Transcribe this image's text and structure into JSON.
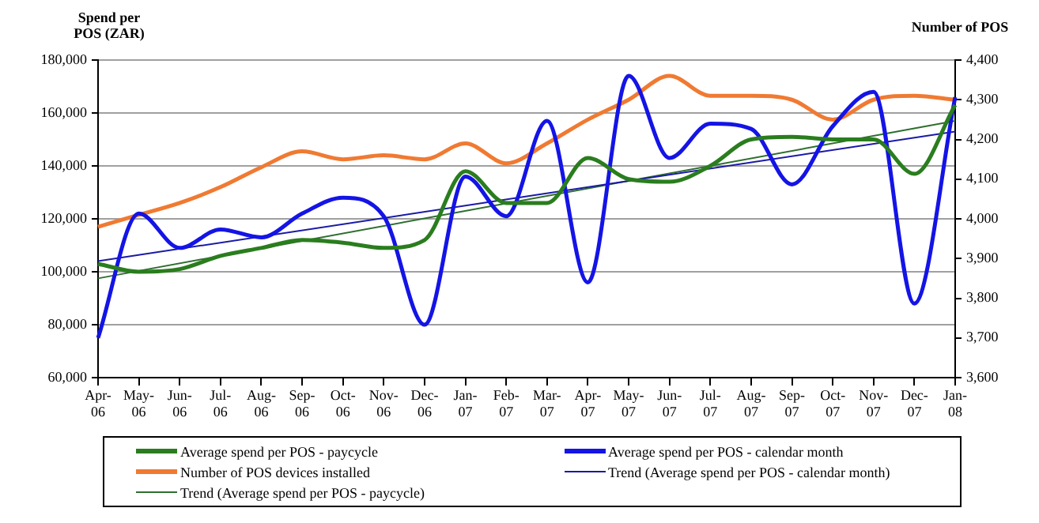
{
  "chart_data": {
    "type": "line",
    "ylabel": "Spend per POS (ZAR)",
    "y2label": "Number of POS",
    "categories": [
      "Apr-06",
      "May-06",
      "Jun-06",
      "Jul-06",
      "Aug-06",
      "Sep-06",
      "Oct-06",
      "Nov-06",
      "Dec-06",
      "Jan-07",
      "Feb-07",
      "Mar-07",
      "Apr-07",
      "May-07",
      "Jun-07",
      "Jul-07",
      "Aug-07",
      "Sep-07",
      "Oct-07",
      "Nov-07",
      "Dec-07",
      "Jan-08"
    ],
    "series": [
      {
        "name": "Average spend per POS - paycycle",
        "color": "#2a7d1e",
        "values": [
          103000,
          100000,
          101000,
          106000,
          109000,
          112000,
          111000,
          109000,
          112000,
          138000,
          126000,
          126000,
          143000,
          135000,
          134000,
          140000,
          150000,
          151000,
          150000,
          150000,
          137000,
          163000
        ]
      },
      {
        "name": "Average spend per POS - calendar month",
        "color": "#1414e6",
        "values": [
          75000,
          122000,
          109000,
          116000,
          113000,
          122000,
          128000,
          121000,
          80000,
          136000,
          121000,
          157000,
          96000,
          174000,
          143000,
          156000,
          154000,
          133000,
          155000,
          168000,
          88000,
          166000
        ]
      },
      {
        "name": "Number of POS devices installed",
        "color": "#f07a32",
        "axis": "y2",
        "values": [
          3980,
          4010,
          4040,
          4080,
          4130,
          4170,
          4150,
          4160,
          4150,
          4190,
          4140,
          4190,
          4250,
          4300,
          4360,
          4310,
          4310,
          4300,
          4250,
          4300,
          4310,
          4300
        ]
      },
      {
        "name": "Trend (Average spend per POS - calendar month)",
        "color": "#1a1aa6",
        "type": "line",
        "x": [
          "Apr-06",
          "Jan-08"
        ],
        "values": [
          104000,
          153000
        ]
      },
      {
        "name": "Trend (Average spend per POS - paycycle)",
        "color": "#2e6e2e",
        "type": "line",
        "x": [
          "Apr-06",
          "Jan-08"
        ],
        "values": [
          97500,
          157000
        ]
      }
    ],
    "ylim": [
      60000,
      180000
    ],
    "yticks": [
      {
        "value": 60000,
        "label": "60,000"
      },
      {
        "value": 80000,
        "label": "80,000"
      },
      {
        "value": 100000,
        "label": "100,000"
      },
      {
        "value": 120000,
        "label": "120,000"
      },
      {
        "value": 140000,
        "label": "140,000"
      },
      {
        "value": 160000,
        "label": "160,000"
      },
      {
        "value": 180000,
        "label": "180,000"
      }
    ],
    "y2lim": [
      3600,
      4400
    ],
    "y2ticks": [
      {
        "value": 3600,
        "label": "3,600"
      },
      {
        "value": 3700,
        "label": "3,700"
      },
      {
        "value": 3800,
        "label": "3,800"
      },
      {
        "value": 3900,
        "label": "3,900"
      },
      {
        "value": 4000,
        "label": "4,000"
      },
      {
        "value": 4100,
        "label": "4,100"
      },
      {
        "value": 4200,
        "label": "4,200"
      },
      {
        "value": 4300,
        "label": "4,300"
      },
      {
        "value": 4400,
        "label": "4,400"
      }
    ],
    "grid": "y",
    "legend": "bottom",
    "marker": "none",
    "line_style": "solid"
  }
}
